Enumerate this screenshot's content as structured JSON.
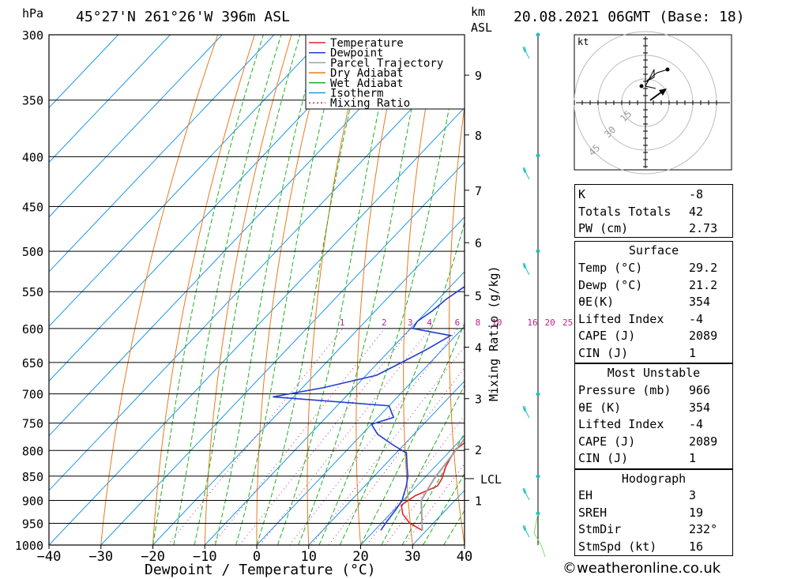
{
  "header": {
    "location": "45°27'N  261°26'W  396m  ASL",
    "datetime": "20.08.2021  06GMT  (Base: 18)",
    "hpa_label": "hPa",
    "km_label": "km",
    "asl_label": "ASL"
  },
  "chart_data": {
    "type": "line",
    "title": "Skew-T log-P diagram",
    "xlabel": "Dewpoint / Temperature (°C)",
    "ylabel": "hPa",
    "right_label": "Mixing Ratio (g/kg)",
    "xlim": [
      -40,
      40
    ],
    "ylim": [
      1000,
      300
    ],
    "x_ticks": [
      -40,
      -30,
      -20,
      -10,
      0,
      10,
      20,
      30,
      40
    ],
    "pressure_levels": [
      300,
      350,
      400,
      450,
      500,
      550,
      600,
      650,
      700,
      750,
      800,
      850,
      900,
      950,
      1000
    ],
    "km_ticks": [
      {
        "km": 1,
        "p": 900
      },
      {
        "km": 2,
        "p": 798
      },
      {
        "km": 3,
        "p": 708
      },
      {
        "km": 4,
        "p": 627
      },
      {
        "km": 5,
        "p": 555
      },
      {
        "km": 6,
        "p": 490
      },
      {
        "km": 7,
        "p": 433
      },
      {
        "km": 8,
        "p": 380
      },
      {
        "km": 9,
        "p": 330
      }
    ],
    "lcl": {
      "label": "LCL",
      "p": 855
    },
    "mixing_ratios": [
      1,
      2,
      3,
      4,
      6,
      8,
      10,
      16,
      20,
      25
    ],
    "legend": [
      "Temperature",
      "Dewpoint",
      "Parcel Trajectory",
      "Dry Adiabat",
      "Wet Adiabat",
      "Isotherm",
      "Mixing Ratio"
    ],
    "legend_colors": [
      "#e0232a",
      "#1f3cd2",
      "#a0a0a0",
      "#e87a1e",
      "#20b020",
      "#1e96e6",
      "#c0208c"
    ],
    "series": [
      {
        "name": "Temperature",
        "color": "#e0232a",
        "points": [
          [
            966,
            29.2
          ],
          [
            950,
            25.5
          ],
          [
            930,
            22.5
          ],
          [
            910,
            20.5
          ],
          [
            890,
            21.5
          ],
          [
            870,
            24
          ],
          [
            855,
            23.5
          ],
          [
            830,
            22
          ],
          [
            800,
            20.8
          ],
          [
            780,
            21.5
          ],
          [
            760,
            22.5
          ],
          [
            740,
            20.8
          ],
          [
            720,
            21.5
          ],
          [
            705,
            22.5
          ],
          [
            680,
            22
          ],
          [
            650,
            21
          ],
          [
            620,
            19.5
          ],
          [
            590,
            17
          ],
          [
            560,
            15
          ],
          [
            530,
            13.6
          ],
          [
            500,
            11.8
          ],
          [
            470,
            9
          ],
          [
            450,
            6.5
          ],
          [
            430,
            5.2
          ],
          [
            400,
            3
          ],
          [
            370,
            -0.5
          ],
          [
            350,
            -3
          ],
          [
            330,
            -6.3
          ],
          [
            310,
            -10
          ],
          [
            300,
            -11.5
          ]
        ]
      },
      {
        "name": "Dewpoint",
        "color": "#1f3cd2",
        "points": [
          [
            966,
            21.2
          ],
          [
            950,
            20.8
          ],
          [
            920,
            20.3
          ],
          [
            900,
            19.8
          ],
          [
            870,
            18
          ],
          [
            850,
            16.5
          ],
          [
            830,
            14.5
          ],
          [
            805,
            12
          ],
          [
            790,
            8
          ],
          [
            770,
            3
          ],
          [
            752,
            0
          ],
          [
            740,
            3
          ],
          [
            720,
            0
          ],
          [
            705,
            -24
          ],
          [
            690,
            -16
          ],
          [
            670,
            -8
          ],
          [
            650,
            -5.5
          ],
          [
            630,
            -3
          ],
          [
            610,
            -1
          ],
          [
            600,
            -9.5
          ],
          [
            590,
            -10
          ],
          [
            575,
            -9
          ],
          [
            560,
            -8.5
          ],
          [
            540,
            -7
          ],
          [
            525,
            -2
          ],
          [
            510,
            -4
          ],
          [
            500,
            -5.5
          ],
          [
            470,
            -7
          ],
          [
            450,
            -8
          ],
          [
            445,
            -12
          ],
          [
            430,
            -14
          ],
          [
            420,
            -14
          ],
          [
            410,
            -14
          ],
          [
            400,
            -15
          ],
          [
            395,
            -15
          ],
          [
            385,
            -12
          ],
          [
            380,
            -22
          ],
          [
            375,
            -16
          ],
          [
            360,
            -10.5
          ],
          [
            355,
            -17.5
          ],
          [
            345,
            -9
          ],
          [
            330,
            -9.5
          ],
          [
            320,
            -7.5
          ],
          [
            310,
            -7
          ],
          [
            305,
            -8
          ],
          [
            300,
            -9
          ]
        ]
      },
      {
        "name": "Parcel Trajectory",
        "color": "#a0a0a0",
        "points": [
          [
            966,
            29.2
          ],
          [
            900,
            23.5
          ],
          [
            855,
            22
          ],
          [
            800,
            21
          ],
          [
            750,
            20
          ],
          [
            700,
            19
          ],
          [
            650,
            18
          ],
          [
            600,
            16.5
          ],
          [
            550,
            14.5
          ],
          [
            500,
            12
          ],
          [
            450,
            8.5
          ],
          [
            400,
            4
          ],
          [
            370,
            0.5
          ]
        ]
      }
    ]
  },
  "hodograph": {
    "unit": "kt",
    "rings": [
      "15",
      "30",
      "45"
    ]
  },
  "indices": {
    "top": [
      {
        "label": "K",
        "value": "-8"
      },
      {
        "label": "Totals Totals",
        "value": "42"
      },
      {
        "label": "PW (cm)",
        "value": "2.73"
      }
    ],
    "surface": {
      "title": "Surface",
      "rows": [
        {
          "label": "Temp (°C)",
          "value": "29.2"
        },
        {
          "label": "Dewp (°C)",
          "value": "21.2"
        },
        {
          "label": "θE(K)",
          "value": "354"
        },
        {
          "label": "Lifted Index",
          "value": "-4"
        },
        {
          "label": "CAPE (J)",
          "value": "2089"
        },
        {
          "label": "CIN (J)",
          "value": "1"
        }
      ]
    },
    "most_unstable": {
      "title": "Most Unstable",
      "rows": [
        {
          "label": "Pressure (mb)",
          "value": "966"
        },
        {
          "label": "θE (K)",
          "value": "354"
        },
        {
          "label": "Lifted Index",
          "value": "-4"
        },
        {
          "label": "CAPE (J)",
          "value": "2089"
        },
        {
          "label": "CIN (J)",
          "value": "1"
        }
      ]
    },
    "hodograph_box": {
      "title": "Hodograph",
      "rows": [
        {
          "label": "EH",
          "value": "3"
        },
        {
          "label": "SREH",
          "value": "19"
        },
        {
          "label": "StmDir",
          "value": "232°"
        },
        {
          "label": "StmSpd (kt)",
          "value": "16"
        }
      ]
    }
  },
  "credit": "©weatheronline.co.uk"
}
